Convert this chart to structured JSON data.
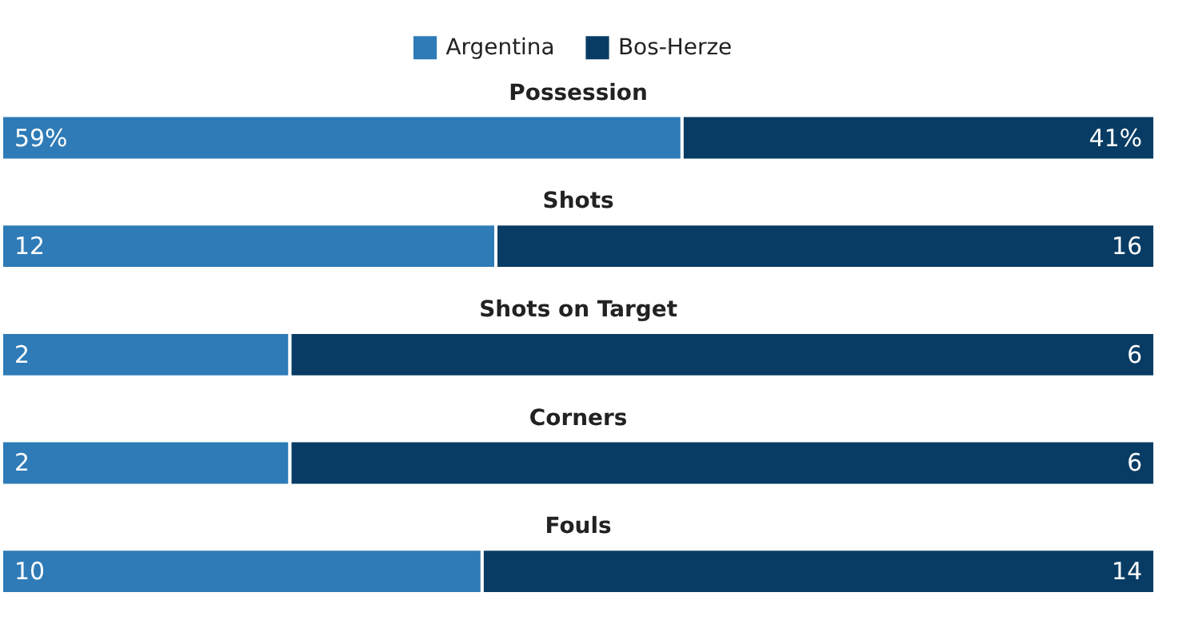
{
  "chart_data": [
    {
      "type": "bar",
      "orientation": "horizontal",
      "stacked": true,
      "legend": "top",
      "title": "Possession",
      "categories": [
        null
      ],
      "xlim": [
        0,
        100
      ],
      "series": [
        {
          "name": "Argentina",
          "color": "#2e7bb7",
          "values": [
            59
          ],
          "value_labels": [
            "59%"
          ]
        },
        {
          "name": "Bos-Herze",
          "color": "#083c64",
          "values": [
            41
          ],
          "value_labels": [
            "41%"
          ]
        }
      ]
    },
    {
      "type": "bar",
      "orientation": "horizontal",
      "stacked": true,
      "title": "Shots",
      "categories": [
        null
      ],
      "xlim": [
        0,
        28
      ],
      "data_labels": true,
      "series": [
        {
          "color": "#2e7bb7",
          "values": [
            12
          ]
        },
        {
          "color": "#083c64",
          "values": [
            16
          ]
        }
      ]
    },
    {
      "type": "bar",
      "orientation": "horizontal",
      "stacked": true,
      "title": "Shots on Target",
      "categories": [
        null
      ],
      "xlim": [
        0,
        8
      ],
      "data_labels": true,
      "series": [
        {
          "color": "#2e7bb7",
          "values": [
            2
          ]
        },
        {
          "color": "#083c64",
          "values": [
            6
          ]
        }
      ]
    },
    {
      "type": "bar",
      "orientation": "horizontal",
      "stacked": true,
      "title": "Corners",
      "categories": [
        null
      ],
      "xlim": [
        0,
        8
      ],
      "data_labels": true,
      "series": [
        {
          "color": "#2e7bb7",
          "values": [
            2
          ]
        },
        {
          "color": "#083c64",
          "values": [
            6
          ]
        }
      ]
    },
    {
      "type": "bar",
      "orientation": "horizontal",
      "stacked": true,
      "title": "Fouls",
      "categories": [
        null
      ],
      "xlim": [
        0,
        24
      ],
      "data_labels": true,
      "series": [
        {
          "color": "#2e7bb7",
          "values": [
            10
          ]
        },
        {
          "color": "#083c64",
          "values": [
            14
          ]
        }
      ]
    }
  ]
}
